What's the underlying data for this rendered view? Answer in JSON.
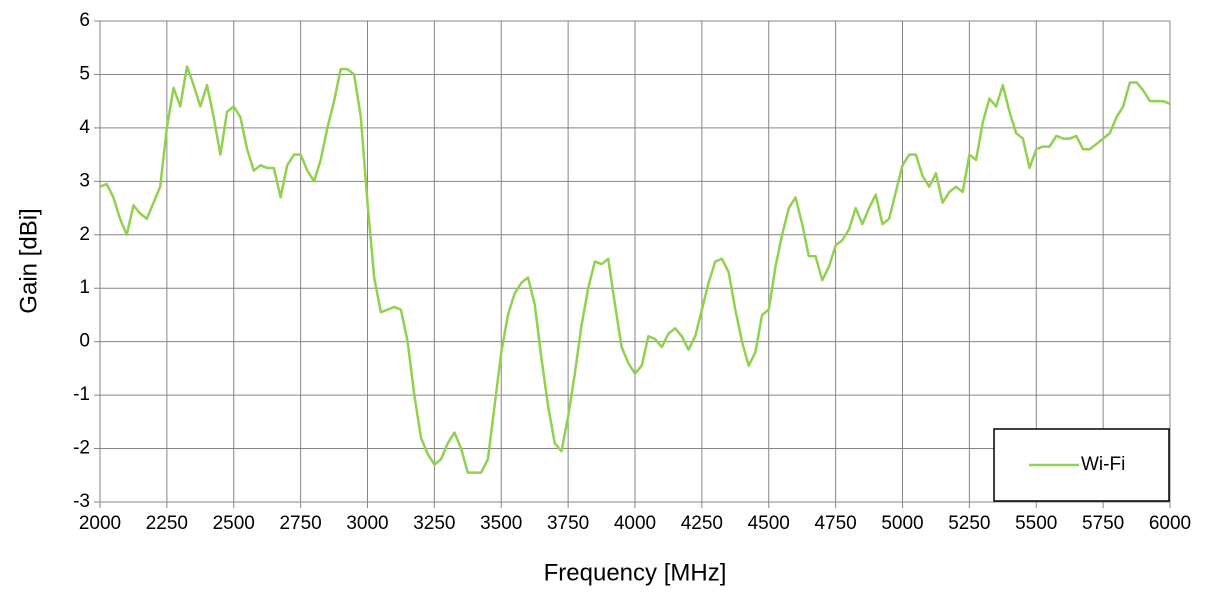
{
  "chart_data": {
    "type": "line",
    "x_label": "Frequency [MHz]",
    "y_label": "Gain [dBi]",
    "xlim": [
      2000,
      6000
    ],
    "ylim": [
      -3,
      6
    ],
    "xticks": [
      2000,
      2250,
      2500,
      2750,
      3000,
      3250,
      3500,
      3750,
      4000,
      4250,
      4500,
      4750,
      5000,
      5250,
      5500,
      5750,
      6000
    ],
    "yticks": [
      -3,
      -2,
      -1,
      0,
      1,
      2,
      3,
      4,
      5,
      6
    ],
    "grid": true,
    "legend": "lower right",
    "x": [
      2000,
      2025,
      2050,
      2075,
      2100,
      2125,
      2150,
      2175,
      2200,
      2225,
      2250,
      2275,
      2300,
      2325,
      2350,
      2375,
      2400,
      2425,
      2450,
      2475,
      2500,
      2525,
      2550,
      2575,
      2600,
      2625,
      2650,
      2675,
      2700,
      2725,
      2750,
      2775,
      2800,
      2825,
      2850,
      2875,
      2900,
      2925,
      2950,
      2975,
      3000,
      3025,
      3050,
      3075,
      3100,
      3125,
      3150,
      3175,
      3200,
      3225,
      3250,
      3275,
      3300,
      3325,
      3350,
      3375,
      3400,
      3425,
      3450,
      3475,
      3500,
      3525,
      3550,
      3575,
      3600,
      3625,
      3650,
      3675,
      3700,
      3725,
      3750,
      3775,
      3800,
      3825,
      3850,
      3875,
      3900,
      3925,
      3950,
      3975,
      4000,
      4025,
      4050,
      4075,
      4100,
      4125,
      4150,
      4175,
      4200,
      4225,
      4250,
      4275,
      4300,
      4325,
      4350,
      4375,
      4400,
      4425,
      4450,
      4475,
      4500,
      4525,
      4550,
      4575,
      4600,
      4625,
      4650,
      4675,
      4700,
      4725,
      4750,
      4775,
      4800,
      4825,
      4850,
      4875,
      4900,
      4925,
      4950,
      4975,
      5000,
      5025,
      5050,
      5075,
      5100,
      5125,
      5150,
      5175,
      5200,
      5225,
      5250,
      5275,
      5300,
      5325,
      5350,
      5375,
      5400,
      5425,
      5450,
      5475,
      5500,
      5525,
      5550,
      5575,
      5600,
      5625,
      5650,
      5675,
      5700,
      5725,
      5750,
      5775,
      5800,
      5825,
      5850,
      5875,
      5900,
      5925,
      5950,
      5975,
      6000
    ],
    "series": [
      {
        "name": "Wi-Fi",
        "color": "#92d050",
        "values": [
          2.9,
          2.95,
          2.7,
          2.3,
          2.0,
          2.55,
          2.4,
          2.3,
          2.6,
          2.9,
          4.0,
          4.75,
          4.4,
          5.15,
          4.8,
          4.4,
          4.8,
          4.2,
          3.5,
          4.3,
          4.4,
          4.2,
          3.6,
          3.2,
          3.3,
          3.25,
          3.25,
          2.7,
          3.3,
          3.5,
          3.5,
          3.2,
          3.0,
          3.4,
          4.0,
          4.5,
          5.1,
          5.1,
          5.0,
          4.2,
          2.6,
          1.2,
          0.55,
          0.6,
          0.65,
          0.6,
          0.0,
          -1.0,
          -1.8,
          -2.1,
          -2.3,
          -2.2,
          -1.9,
          -1.7,
          -2.0,
          -2.45,
          -2.45,
          -2.45,
          -2.2,
          -1.2,
          -0.2,
          0.5,
          0.9,
          1.1,
          1.2,
          0.7,
          -0.3,
          -1.2,
          -1.9,
          -2.05,
          -1.4,
          -0.6,
          0.3,
          1.0,
          1.5,
          1.45,
          1.55,
          0.7,
          -0.1,
          -0.4,
          -0.6,
          -0.45,
          0.1,
          0.05,
          -0.1,
          0.15,
          0.25,
          0.1,
          -0.15,
          0.1,
          0.6,
          1.1,
          1.5,
          1.55,
          1.3,
          0.6,
          0.0,
          -0.45,
          -0.2,
          0.5,
          0.6,
          1.4,
          2.0,
          2.5,
          2.7,
          2.2,
          1.6,
          1.6,
          1.15,
          1.4,
          1.8,
          1.9,
          2.1,
          2.5,
          2.2,
          2.5,
          2.75,
          2.2,
          2.3,
          2.8,
          3.3,
          3.5,
          3.5,
          3.1,
          2.9,
          3.15,
          2.6,
          2.8,
          2.9,
          2.8,
          3.5,
          3.4,
          4.1,
          4.55,
          4.4,
          4.8,
          4.3,
          3.9,
          3.8,
          3.25,
          3.6,
          3.65,
          3.65,
          3.85,
          3.8,
          3.8,
          3.85,
          3.6,
          3.6,
          3.7,
          3.8,
          3.9,
          4.2,
          4.4,
          4.85,
          4.85,
          4.7,
          4.5,
          4.5,
          4.5,
          4.45
        ]
      }
    ]
  }
}
